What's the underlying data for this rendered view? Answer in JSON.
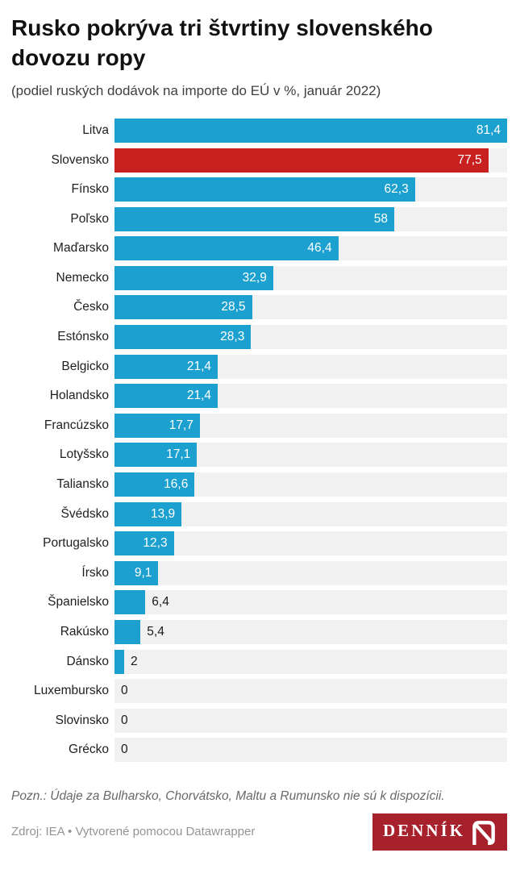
{
  "header": {
    "title": "Rusko pokrýva tri štvrtiny slovenského dovozu ropy",
    "subtitle": "(podiel ruských dodávok na importe do EÚ v %, január 2022)"
  },
  "chart_data": {
    "type": "bar",
    "orientation": "horizontal",
    "unit": "%",
    "decimal_separator": ",",
    "xlim": [
      0,
      81.4
    ],
    "grid": false,
    "legend": "none",
    "categories": [
      "Litva",
      "Slovensko",
      "Fínsko",
      "Poľsko",
      "Maďarsko",
      "Nemecko",
      "Česko",
      "Estónsko",
      "Belgicko",
      "Holandsko",
      "Francúzsko",
      "Lotyšsko",
      "Taliansko",
      "Švédsko",
      "Portugalsko",
      "Írsko",
      "Španielsko",
      "Rakúsko",
      "Dánsko",
      "Luxembursko",
      "Slovinsko",
      "Grécko"
    ],
    "values": [
      81.4,
      77.5,
      62.3,
      58,
      46.4,
      32.9,
      28.5,
      28.3,
      21.4,
      21.4,
      17.7,
      17.1,
      16.6,
      13.9,
      12.3,
      9.1,
      6.4,
      5.4,
      2,
      0,
      0,
      0
    ],
    "display_values": [
      "81,4",
      "77,5",
      "62,3",
      "58",
      "46,4",
      "32,9",
      "28,5",
      "28,3",
      "21,4",
      "21,4",
      "17,7",
      "17,1",
      "16,6",
      "13,9",
      "12,3",
      "9,1",
      "6,4",
      "5,4",
      "2",
      "0",
      "0",
      "0"
    ],
    "highlight_category": "Slovensko",
    "colors": {
      "bar": "#1CA0CF",
      "highlight": "#C81F1F",
      "track": "#F1F1F1",
      "value_inside": "#FFFFFF",
      "value_outside": "#1A1A1A"
    }
  },
  "footer": {
    "note": "Pozn.: Údaje za Bulharsko, Chorvátsko, Maltu a Rumunsko nie sú k dispozícii.",
    "source": "Zdroj: IEA • Vytvorené pomocou Datawrapper",
    "logo_text": "DENNÍK",
    "logo_bg": "#A6212C"
  }
}
